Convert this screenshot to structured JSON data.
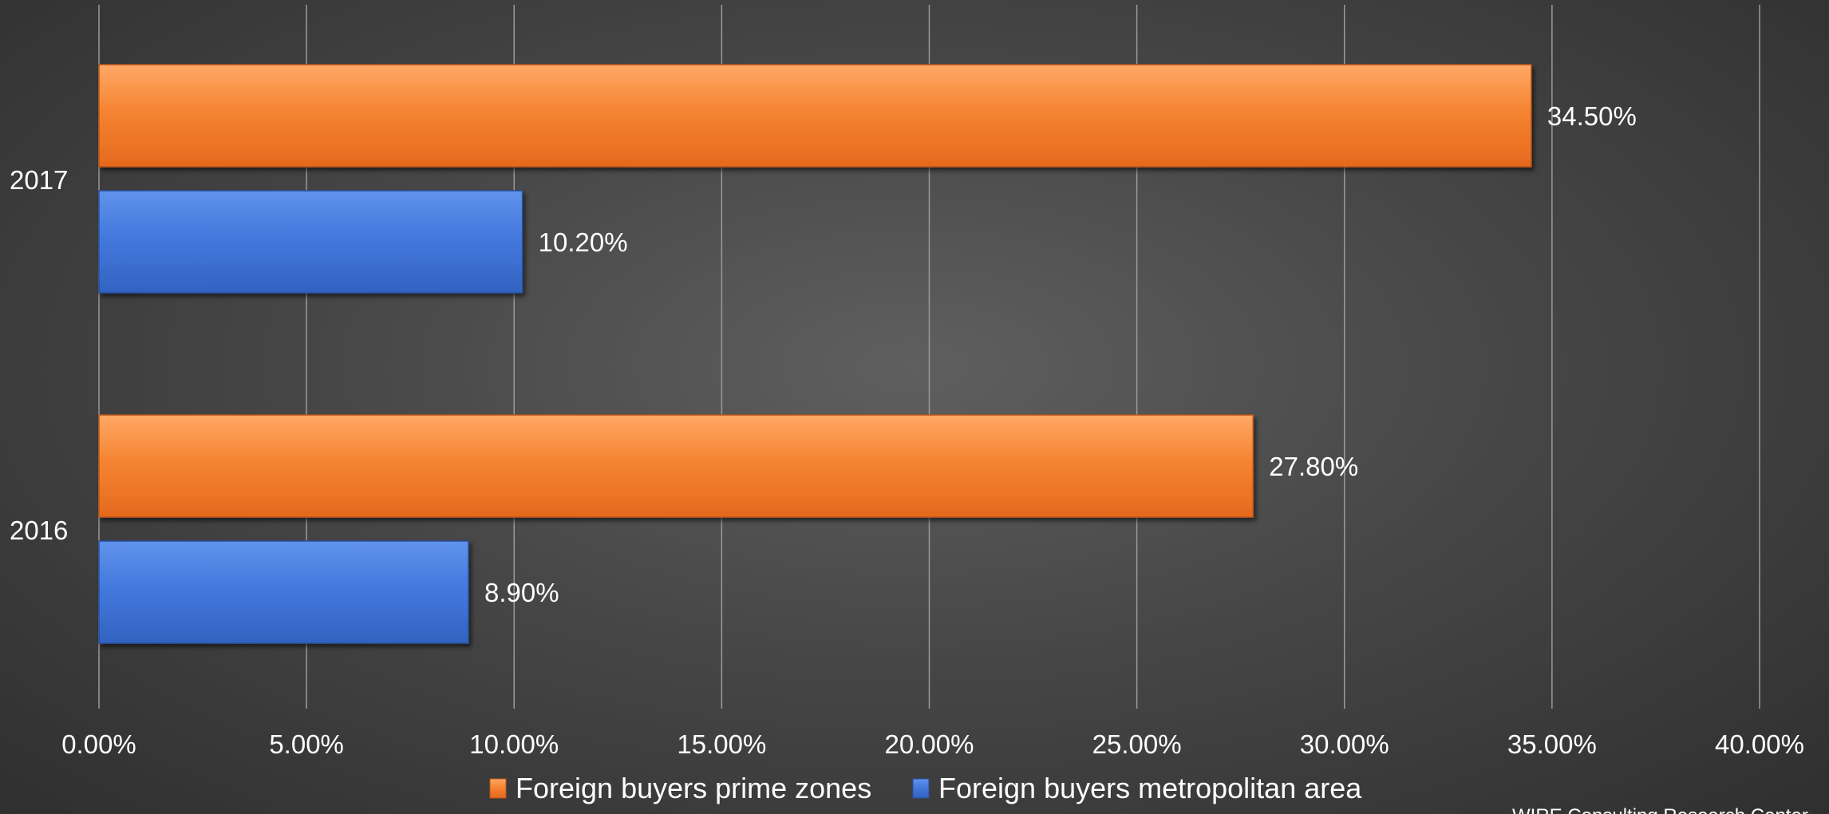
{
  "chart_data": {
    "type": "bar",
    "orientation": "horizontal",
    "categories": [
      "2017",
      "2016"
    ],
    "series": [
      {
        "name": "Foreign buyers prime zones",
        "color": "#f37b2a",
        "values": [
          34.5,
          27.8
        ],
        "labels": [
          "34.50%",
          "27.80%"
        ]
      },
      {
        "name": "Foreign buyers metropolitan area",
        "color": "#3f73d8",
        "values": [
          10.2,
          8.9
        ],
        "labels": [
          "10.20%",
          "8.90%"
        ]
      }
    ],
    "xlim": [
      0,
      40
    ],
    "xticks": [
      0,
      5,
      10,
      15,
      20,
      25,
      30,
      35,
      40
    ],
    "xtick_labels": [
      "0.00%",
      "5.00%",
      "10.00%",
      "15.00%",
      "20.00%",
      "25.00%",
      "30.00%",
      "35.00%",
      "40.00%"
    ],
    "grid": true,
    "legend_position": "bottom",
    "source": "WIRE Consulting Research Center"
  }
}
